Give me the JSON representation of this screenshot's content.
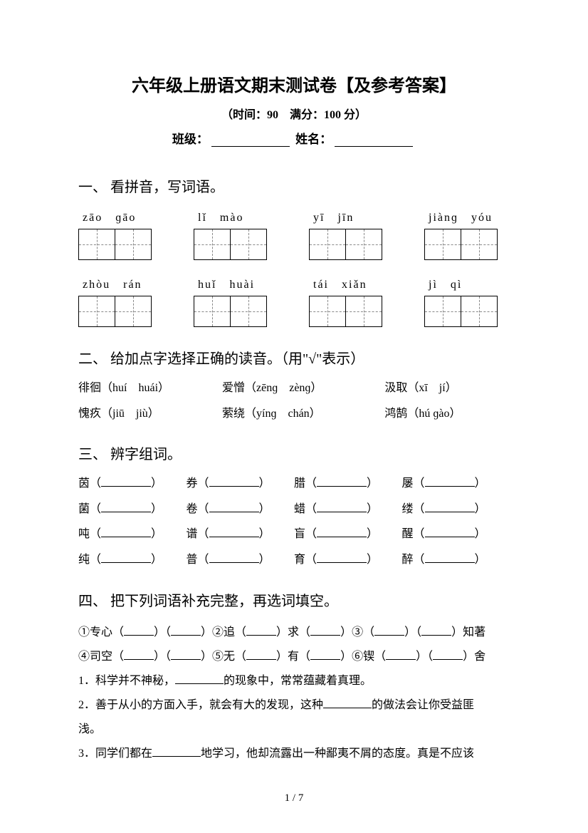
{
  "title": "六年级上册语文期末测试卷【及参考答案】",
  "subtitle": "（时间：90　满分：100 分）",
  "info": {
    "class_label": "班级：",
    "name_label": "姓名："
  },
  "q1": {
    "heading": "一、 看拼音，写词语。",
    "rows": [
      [
        {
          "p1": "zāo",
          "p2": "ɡāo"
        },
        {
          "p1": "lǐ",
          "p2": "mào"
        },
        {
          "p1": "yī",
          "p2": "jīn"
        },
        {
          "p1": "jiànɡ",
          "p2": "yóu"
        }
      ],
      [
        {
          "p1": "zhòu",
          "p2": "rán"
        },
        {
          "p1": "huǐ",
          "p2": "huài"
        },
        {
          "p1": "tái",
          "p2": "xiǎn"
        },
        {
          "p1": "jì",
          "p2": "qì"
        }
      ]
    ]
  },
  "q2": {
    "heading": "二、 给加点字选择正确的读音。（用\"√\"表示）",
    "rows": [
      [
        {
          "word": "徘徊",
          "opts": "（huí　huái）"
        },
        {
          "word": "爱憎",
          "opts": "（zēnɡ　zènɡ）"
        },
        {
          "word": "汲取",
          "opts": "（xī　jí）"
        }
      ],
      [
        {
          "word": "愧疚",
          "opts": "（jiū　jiù）"
        },
        {
          "word": "萦绕",
          "opts": "（yínɡ　chán）"
        },
        {
          "word": "鸿鹄",
          "opts": "（hú ɡào）"
        }
      ]
    ]
  },
  "q3": {
    "heading": "三、 辨字组词。",
    "rows": [
      [
        "茵",
        "券",
        "腊",
        "屡"
      ],
      [
        "菌",
        "卷",
        "蜡",
        "缕"
      ],
      [
        "吨",
        "谱",
        "盲",
        "醒"
      ],
      [
        "纯",
        "普",
        "育",
        "醉"
      ]
    ]
  },
  "q4": {
    "heading": "四、 把下列词语补充完整，再选词填空。",
    "line1a": "①专心（",
    "line1b": "）（",
    "line1c": "）②追（",
    "line1d": "）求（",
    "line1e": "）③（",
    "line1f": "）（",
    "line1g": "）知著",
    "line2a": "④司空（",
    "line2b": "）（",
    "line2c": "）⑤无（",
    "line2d": "）有（",
    "line2e": "）⑥锲（",
    "line2f": "）（",
    "line2g": "）舍",
    "s1a": "1．科学并不神秘，",
    "s1b": "的现象中，常常蕴藏着真理。",
    "s2a": "2．善于从小的方面入手，就会有大的发现，这种",
    "s2b": "的做法会让你受益匪",
    "s2c": "浅。",
    "s3a": "3．同学们都在",
    "s3b": "地学习，他却流露出一种鄙夷不屑的态度。真是不应该"
  },
  "footer": "1 / 7"
}
